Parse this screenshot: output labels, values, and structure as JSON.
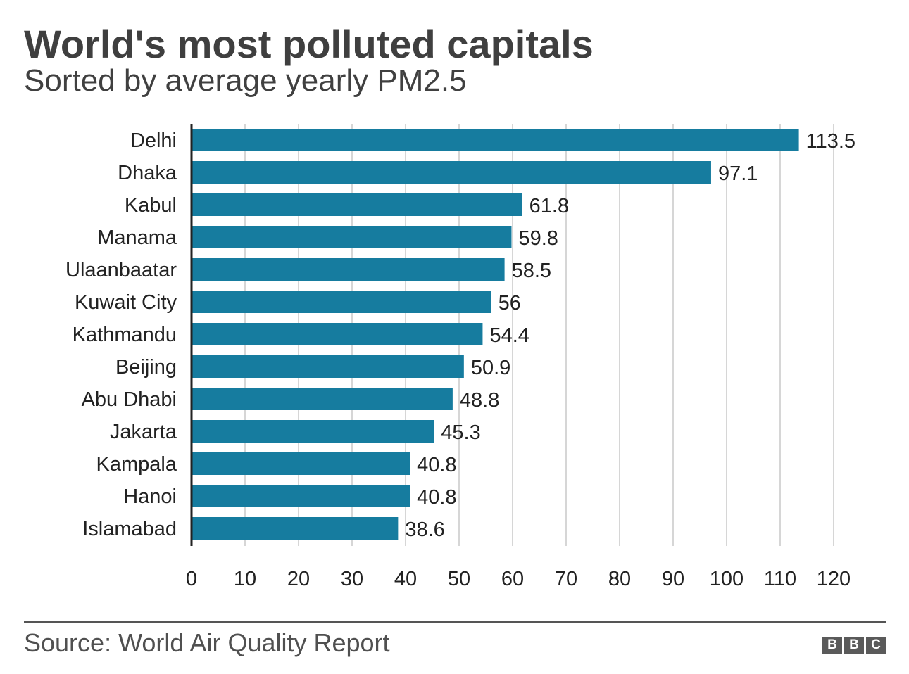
{
  "header": {
    "title": "World's most polluted capitals",
    "subtitle": "Sorted by average yearly PM2.5"
  },
  "footer": {
    "source": "Source: World Air Quality Report",
    "logo_letters": [
      "B",
      "B",
      "C"
    ]
  },
  "colors": {
    "bar": "#167c9f",
    "grid": "#d6d6d6",
    "axis": "#222222",
    "text": "#222222"
  },
  "chart_data": {
    "type": "bar",
    "orientation": "horizontal",
    "title": "World's most polluted capitals",
    "subtitle": "Sorted by average yearly PM2.5",
    "categories": [
      "Delhi",
      "Dhaka",
      "Kabul",
      "Manama",
      "Ulaanbaatar",
      "Kuwait City",
      "Kathmandu",
      "Beijing",
      "Abu Dhabi",
      "Jakarta",
      "Kampala",
      "Hanoi",
      "Islamabad"
    ],
    "values": [
      113.5,
      97.1,
      61.8,
      59.8,
      58.5,
      56,
      54.4,
      50.9,
      48.8,
      45.3,
      40.8,
      40.8,
      38.6
    ],
    "value_labels": [
      "113.5",
      "97.1",
      "61.8",
      "59.8",
      "58.5",
      "56",
      "54.4",
      "50.9",
      "48.8",
      "45.3",
      "40.8",
      "40.8",
      "38.6"
    ],
    "xticks": [
      "0",
      "10",
      "20",
      "30",
      "40",
      "50",
      "60",
      "70",
      "80",
      "90",
      "100",
      "110",
      "120"
    ],
    "xlim": [
      0,
      120
    ],
    "grid": true,
    "legend": "none",
    "source": "Source: World Air Quality Report"
  }
}
